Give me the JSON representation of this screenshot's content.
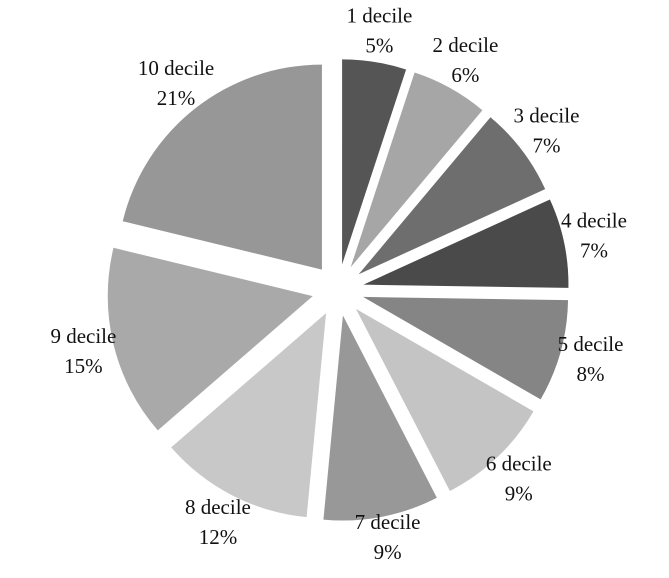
{
  "chart_data": {
    "type": "pie",
    "title": "",
    "categories": [
      "1 decile",
      "2 decile",
      "3 decile",
      "4 decile",
      "5 decile",
      "6 decile",
      "7 decile",
      "8 decile",
      "9 decile",
      "10 decile"
    ],
    "values": [
      5,
      6,
      7,
      7,
      8,
      9,
      9,
      12,
      15,
      21
    ],
    "value_labels": [
      "5%",
      "6%",
      "7%",
      "7%",
      "8%",
      "9%",
      "9%",
      "12%",
      "15%",
      "21%"
    ],
    "exploded": true,
    "colors": [
      "#555555",
      "#a6a6a6",
      "#6e6e6e",
      "#4a4a4a",
      "#858585",
      "#c4c4c4",
      "#989898",
      "#c8c8c8",
      "#a9a9a9",
      "#979797"
    ],
    "legend": "none",
    "data_labels": "outside"
  }
}
